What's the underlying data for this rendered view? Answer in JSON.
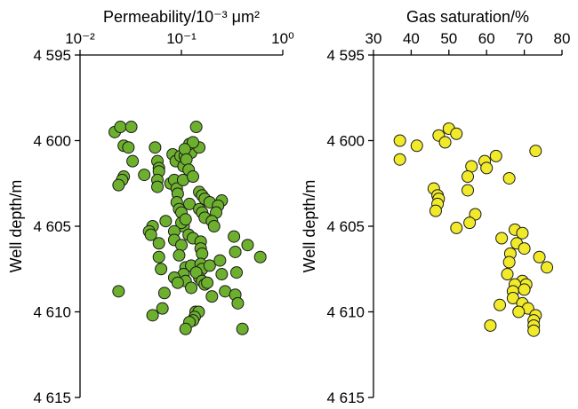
{
  "chart_data": [
    {
      "type": "scatter",
      "title": "",
      "xlabel": "Permeability/10⁻³ μm²",
      "ylabel": "Well depth/m",
      "x_scale": "log",
      "xlim": [
        0.01,
        1
      ],
      "ylim": [
        4595,
        4615
      ],
      "y_inverted": true,
      "x_axis_position": "top",
      "grid": false,
      "x_tick_labels": [
        "10⁻²",
        "10⁻¹",
        "10⁰"
      ],
      "y_tick_labels": [
        "4 595",
        "4 600",
        "4 605",
        "4 610",
        "4 615"
      ],
      "marker_color": "#6db02e",
      "series": [
        {
          "points": [
            [
              0.022,
              4599.5
            ],
            [
              0.025,
              4599.2
            ],
            [
              0.032,
              4599.2
            ],
            [
              0.027,
              4600.3
            ],
            [
              0.03,
              4600.4
            ],
            [
              0.055,
              4600.4
            ],
            [
              0.082,
              4600.8
            ],
            [
              0.088,
              4601.2
            ],
            [
              0.098,
              4600.9
            ],
            [
              0.108,
              4600.9
            ],
            [
              0.125,
              4600.7
            ],
            [
              0.14,
              4599.2
            ],
            [
              0.15,
              4600.4
            ],
            [
              0.12,
              4600.2
            ],
            [
              0.13,
              4600.1
            ],
            [
              0.108,
              4600.5
            ],
            [
              0.105,
              4601.5
            ],
            [
              0.112,
              4601.1
            ],
            [
              0.118,
              4601.7
            ],
            [
              0.058,
              4601.2
            ],
            [
              0.06,
              4601.6
            ],
            [
              0.06,
              4601.8
            ],
            [
              0.033,
              4601.2
            ],
            [
              0.027,
              4602.1
            ],
            [
              0.026,
              4602.3
            ],
            [
              0.024,
              4602.6
            ],
            [
              0.043,
              4602.0
            ],
            [
              0.058,
              4602.3
            ],
            [
              0.058,
              4602.7
            ],
            [
              0.078,
              4602.5
            ],
            [
              0.085,
              4602.3
            ],
            [
              0.09,
              4602.8
            ],
            [
              0.092,
              4603.1
            ],
            [
              0.104,
              4602.3
            ],
            [
              0.13,
              4602.1
            ],
            [
              0.15,
              4603.0
            ],
            [
              0.16,
              4603.2
            ],
            [
              0.17,
              4603.4
            ],
            [
              0.19,
              4603.6
            ],
            [
              0.25,
              4603.5
            ],
            [
              0.12,
              4603.7
            ],
            [
              0.09,
              4603.6
            ],
            [
              0.095,
              4604.0
            ],
            [
              0.1,
              4604.2
            ],
            [
              0.23,
              4603.8
            ],
            [
              0.22,
              4604.2
            ],
            [
              0.15,
              4604.0
            ],
            [
              0.16,
              4604.2
            ],
            [
              0.17,
              4604.5
            ],
            [
              0.2,
              4604.7
            ],
            [
              0.21,
              4605.0
            ],
            [
              0.105,
              4605.0
            ],
            [
              0.1,
              4604.8
            ],
            [
              0.07,
              4604.7
            ],
            [
              0.11,
              4604.6
            ],
            [
              0.085,
              4605.3
            ],
            [
              0.118,
              4605.5
            ],
            [
              0.13,
              4605.7
            ],
            [
              0.052,
              4605.0
            ],
            [
              0.048,
              4605.3
            ],
            [
              0.05,
              4605.5
            ],
            [
              0.06,
              4606.0
            ],
            [
              0.085,
              4605.8
            ],
            [
              0.1,
              4606.1
            ],
            [
              0.155,
              4605.9
            ],
            [
              0.155,
              4606.3
            ],
            [
              0.16,
              4606.6
            ],
            [
              0.33,
              4605.6
            ],
            [
              0.45,
              4606.1
            ],
            [
              0.6,
              4606.8
            ],
            [
              0.34,
              4606.5
            ],
            [
              0.095,
              4606.7
            ],
            [
              0.06,
              4606.8
            ],
            [
              0.11,
              4607.4
            ],
            [
              0.125,
              4607.3
            ],
            [
              0.155,
              4607.2
            ],
            [
              0.16,
              4607.5
            ],
            [
              0.19,
              4607.3
            ],
            [
              0.24,
              4607.0
            ],
            [
              0.25,
              4607.8
            ],
            [
              0.35,
              4607.7
            ],
            [
              0.15,
              4608.0
            ],
            [
              0.14,
              4607.7
            ],
            [
              0.105,
              4607.8
            ],
            [
              0.11,
              4608.2
            ],
            [
              0.16,
              4608.2
            ],
            [
              0.17,
              4608.4
            ],
            [
              0.18,
              4608.3
            ],
            [
              0.063,
              4607.5
            ],
            [
              0.085,
              4608.0
            ],
            [
              0.092,
              4608.3
            ],
            [
              0.068,
              4608.9
            ],
            [
              0.125,
              4608.6
            ],
            [
              0.2,
              4609.1
            ],
            [
              0.27,
              4608.8
            ],
            [
              0.34,
              4609.0
            ],
            [
              0.36,
              4609.5
            ],
            [
              0.024,
              4608.8
            ],
            [
              0.065,
              4609.8
            ],
            [
              0.052,
              4610.2
            ],
            [
              0.138,
              4610.0
            ],
            [
              0.148,
              4610.0
            ],
            [
              0.135,
              4610.3
            ],
            [
              0.13,
              4610.5
            ],
            [
              0.12,
              4610.6
            ],
            [
              0.11,
              4611.0
            ],
            [
              0.4,
              4611.0
            ]
          ]
        }
      ]
    },
    {
      "type": "scatter",
      "title": "",
      "xlabel": "Gas saturation/%",
      "ylabel": "Well depth/m",
      "x_scale": "linear",
      "xlim": [
        30,
        80
      ],
      "ylim": [
        4595,
        4615
      ],
      "y_inverted": true,
      "x_axis_position": "top",
      "grid": false,
      "x_tick_labels": [
        "30",
        "40",
        "50",
        "60",
        "70",
        "80"
      ],
      "y_tick_labels": [
        "4 595",
        "4 600",
        "4 605",
        "4 610",
        "4 615"
      ],
      "marker_color": "#f0ea2a",
      "series": [
        {
          "points": [
            [
              50.0,
              4599.3
            ],
            [
              52.0,
              4599.6
            ],
            [
              47.3,
              4599.7
            ],
            [
              49.0,
              4600.1
            ],
            [
              37.0,
              4600.0
            ],
            [
              41.5,
              4600.3
            ],
            [
              37.0,
              4601.1
            ],
            [
              73.0,
              4600.6
            ],
            [
              62.5,
              4600.9
            ],
            [
              59.5,
              4601.2
            ],
            [
              56.0,
              4601.5
            ],
            [
              60.0,
              4601.6
            ],
            [
              55.0,
              4602.1
            ],
            [
              66.0,
              4602.2
            ],
            [
              46.0,
              4602.8
            ],
            [
              55.0,
              4602.9
            ],
            [
              47.0,
              4603.2
            ],
            [
              47.3,
              4603.4
            ],
            [
              47.0,
              4603.7
            ],
            [
              46.5,
              4604.1
            ],
            [
              57.0,
              4604.3
            ],
            [
              55.5,
              4604.8
            ],
            [
              52.0,
              4605.1
            ],
            [
              67.5,
              4605.2
            ],
            [
              69.5,
              4605.4
            ],
            [
              64.0,
              4605.7
            ],
            [
              68.0,
              4606.0
            ],
            [
              66.3,
              4606.6
            ],
            [
              70.0,
              4606.3
            ],
            [
              74.0,
              4606.8
            ],
            [
              76.0,
              4607.4
            ],
            [
              66.0,
              4607.1
            ],
            [
              65.5,
              4607.8
            ],
            [
              69.5,
              4608.2
            ],
            [
              70.5,
              4608.4
            ],
            [
              67.5,
              4608.4
            ],
            [
              67.0,
              4608.8
            ],
            [
              70.0,
              4608.7
            ],
            [
              67.0,
              4609.2
            ],
            [
              63.5,
              4609.6
            ],
            [
              69.5,
              4609.5
            ],
            [
              71.0,
              4609.8
            ],
            [
              68.5,
              4610.0
            ],
            [
              73.0,
              4610.2
            ],
            [
              72.5,
              4610.5
            ],
            [
              72.5,
              4610.8
            ],
            [
              72.5,
              4611.1
            ],
            [
              61.0,
              4610.8
            ]
          ]
        }
      ]
    }
  ]
}
